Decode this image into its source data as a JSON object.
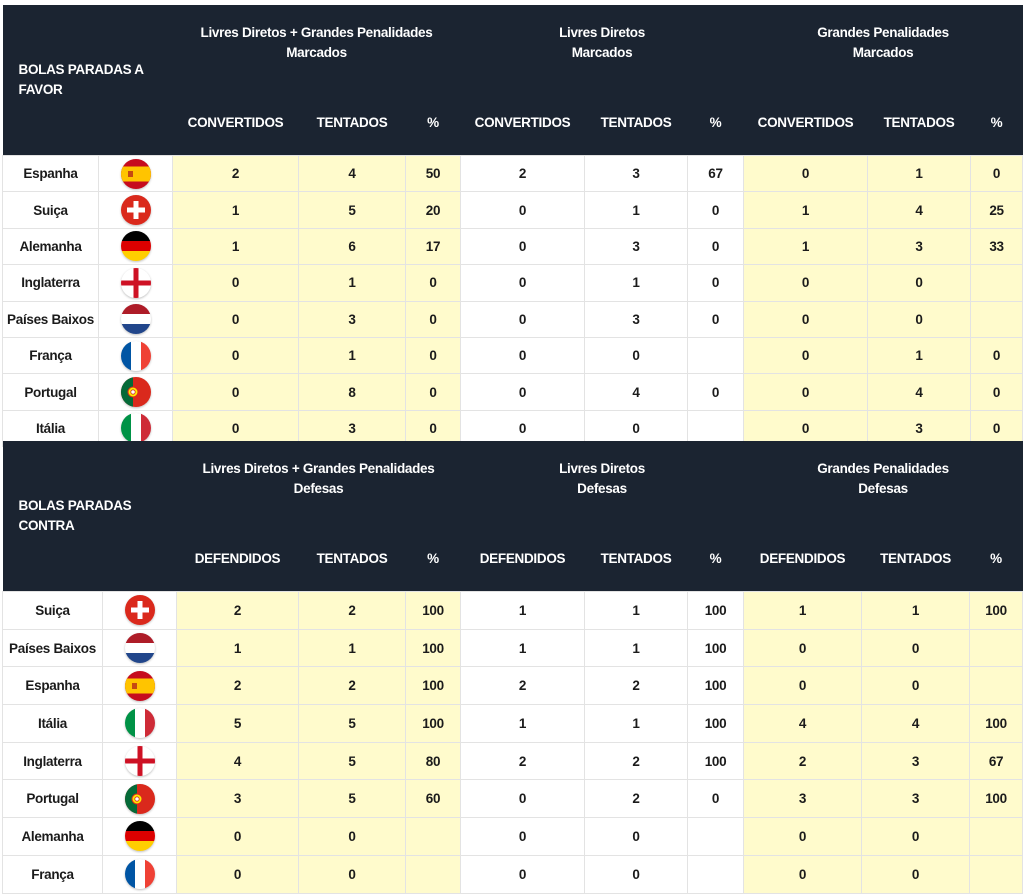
{
  "set_pieces_for": {
    "title": "BOLAS PARADAS A FAVOR",
    "groups": [
      {
        "line1": "Livres Diretos + Grandes Penalidades",
        "line2": "Marcados"
      },
      {
        "line1": "Livres Diretos",
        "line2": "Marcados"
      },
      {
        "line1": "Grandes Penalidades",
        "line2": "Marcados"
      }
    ],
    "columns": [
      "CONVERTIDOS",
      "TENTADOS",
      "%",
      "CONVERTIDOS",
      "TENTADOS",
      "%",
      "CONVERTIDOS",
      "TENTADOS",
      "%"
    ],
    "rows": [
      {
        "team": "Espanha",
        "flag": "spain-flag-icon",
        "values": [
          "2",
          "4",
          "50",
          "2",
          "3",
          "67",
          "0",
          "1",
          "0"
        ]
      },
      {
        "team": "Suiça",
        "flag": "switzerland-flag-icon",
        "values": [
          "1",
          "5",
          "20",
          "0",
          "1",
          "0",
          "1",
          "4",
          "25"
        ]
      },
      {
        "team": "Alemanha",
        "flag": "germany-flag-icon",
        "values": [
          "1",
          "6",
          "17",
          "0",
          "3",
          "0",
          "1",
          "3",
          "33"
        ]
      },
      {
        "team": "Inglaterra",
        "flag": "england-flag-icon",
        "values": [
          "0",
          "1",
          "0",
          "0",
          "1",
          "0",
          "0",
          "0",
          ""
        ]
      },
      {
        "team": "Países Baixos",
        "flag": "netherlands-flag-icon",
        "values": [
          "0",
          "3",
          "0",
          "0",
          "3",
          "0",
          "0",
          "0",
          ""
        ]
      },
      {
        "team": "França",
        "flag": "france-flag-icon",
        "values": [
          "0",
          "1",
          "0",
          "0",
          "0",
          "",
          "0",
          "1",
          "0"
        ]
      },
      {
        "team": "Portugal",
        "flag": "portugal-flag-icon",
        "values": [
          "0",
          "8",
          "0",
          "0",
          "4",
          "0",
          "0",
          "4",
          "0"
        ]
      },
      {
        "team": "Itália",
        "flag": "italy-flag-icon",
        "values": [
          "0",
          "3",
          "0",
          "0",
          "0",
          "",
          "0",
          "3",
          "0"
        ]
      }
    ]
  },
  "set_pieces_against": {
    "title": "BOLAS PARADAS CONTRA",
    "groups": [
      {
        "line1": "Livres Diretos + Grandes Penalidades",
        "line2": "Defesas"
      },
      {
        "line1": "Livres Diretos",
        "line2": "Defesas"
      },
      {
        "line1": "Grandes Penalidades",
        "line2": "Defesas"
      }
    ],
    "columns": [
      "DEFENDIDOS",
      "TENTADOS",
      "%",
      "DEFENDIDOS",
      "TENTADOS",
      "%",
      "DEFENDIDOS",
      "TENTADOS",
      "%"
    ],
    "rows": [
      {
        "team": "Suiça",
        "flag": "switzerland-flag-icon",
        "values": [
          "2",
          "2",
          "100",
          "1",
          "1",
          "100",
          "1",
          "1",
          "100"
        ]
      },
      {
        "team": "Países Baixos",
        "flag": "netherlands-flag-icon",
        "values": [
          "1",
          "1",
          "100",
          "1",
          "1",
          "100",
          "0",
          "0",
          ""
        ]
      },
      {
        "team": "Espanha",
        "flag": "spain-flag-icon",
        "values": [
          "2",
          "2",
          "100",
          "2",
          "2",
          "100",
          "0",
          "0",
          ""
        ]
      },
      {
        "team": "Itália",
        "flag": "italy-flag-icon",
        "values": [
          "5",
          "5",
          "100",
          "1",
          "1",
          "100",
          "4",
          "4",
          "100"
        ]
      },
      {
        "team": "Inglaterra",
        "flag": "england-flag-icon",
        "values": [
          "4",
          "5",
          "80",
          "2",
          "2",
          "100",
          "2",
          "3",
          "67"
        ]
      },
      {
        "team": "Portugal",
        "flag": "portugal-flag-icon",
        "values": [
          "3",
          "5",
          "60",
          "0",
          "2",
          "0",
          "3",
          "3",
          "100"
        ]
      },
      {
        "team": "Alemanha",
        "flag": "germany-flag-icon",
        "values": [
          "0",
          "0",
          "",
          "0",
          "0",
          "",
          "0",
          "0",
          ""
        ]
      },
      {
        "team": "França",
        "flag": "france-flag-icon",
        "values": [
          "0",
          "0",
          "",
          "0",
          "0",
          "",
          "0",
          "0",
          ""
        ]
      }
    ]
  },
  "colors": {
    "header_bg": "#1b2431",
    "highlight_bg": "#fffbcc",
    "grid": "#e3e3e3"
  }
}
